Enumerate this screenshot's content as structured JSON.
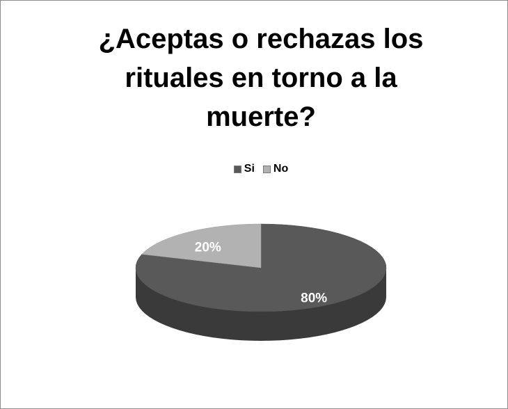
{
  "chart_data": {
    "type": "pie",
    "title": "¿Aceptas o rechazas los rituales en torno a la muerte?",
    "categories": [
      "Si",
      "No"
    ],
    "values": [
      80,
      20
    ],
    "value_labels": [
      "80%",
      "20%"
    ],
    "colors": [
      "#595959",
      "#b2b2b2"
    ],
    "legend": "top"
  }
}
